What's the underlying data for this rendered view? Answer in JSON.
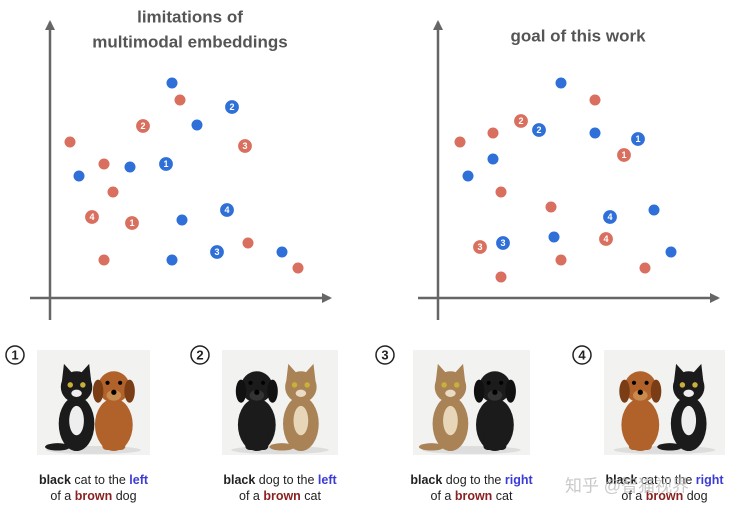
{
  "panels": [
    {
      "title": [
        "limitations of",
        "multimodal embeddings"
      ]
    },
    {
      "title": [
        "goal of this work"
      ]
    }
  ],
  "examples": [
    {
      "number": "1",
      "line1": [
        "black",
        " cat to the ",
        "left"
      ],
      "line2": [
        "of a ",
        "brown",
        " dog"
      ]
    },
    {
      "number": "2",
      "line1": [
        "black",
        " dog to the ",
        "left"
      ],
      "line2": [
        "of a ",
        "brown",
        " cat"
      ]
    },
    {
      "number": "3",
      "line1": [
        "black",
        " dog to the ",
        "right"
      ],
      "line2": [
        "of a ",
        "brown",
        " cat"
      ]
    },
    {
      "number": "4",
      "line1": [
        "black",
        " cat to the ",
        "right"
      ],
      "line2": [
        "of a ",
        "brown",
        " dog"
      ]
    }
  ],
  "watermark": "知乎 @智猫视界"
}
